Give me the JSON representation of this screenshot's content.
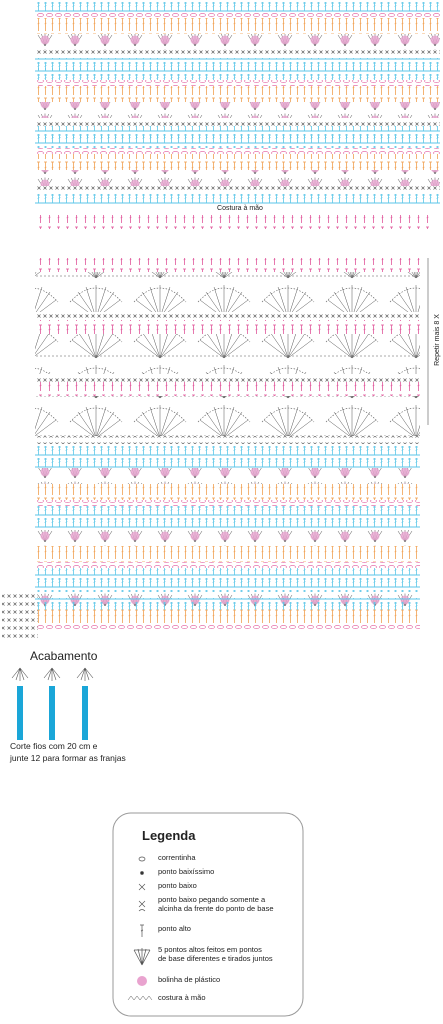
{
  "labels": {
    "seam": "Costura à mão",
    "repeat": "Repetir mais 8 X",
    "finishing": "Acabamento",
    "fringe_note": [
      "Corte fios com 20 cm e",
      "junte 12 para formar as franjas"
    ]
  },
  "legend": {
    "title": "Legenda",
    "items": [
      [
        "correntinha"
      ],
      [
        "ponto baixíssimo"
      ],
      [
        "ponto baixo"
      ],
      [
        "ponto baixo pegando somente a",
        "alcinha da frente do ponto de base"
      ],
      [
        "ponto alto"
      ],
      [
        "5 pontos altos feitos em pontos",
        "de base diferentes e tirados juntos"
      ],
      [
        "bolinha de plástico"
      ],
      [
        "costura à mão"
      ]
    ]
  }
}
